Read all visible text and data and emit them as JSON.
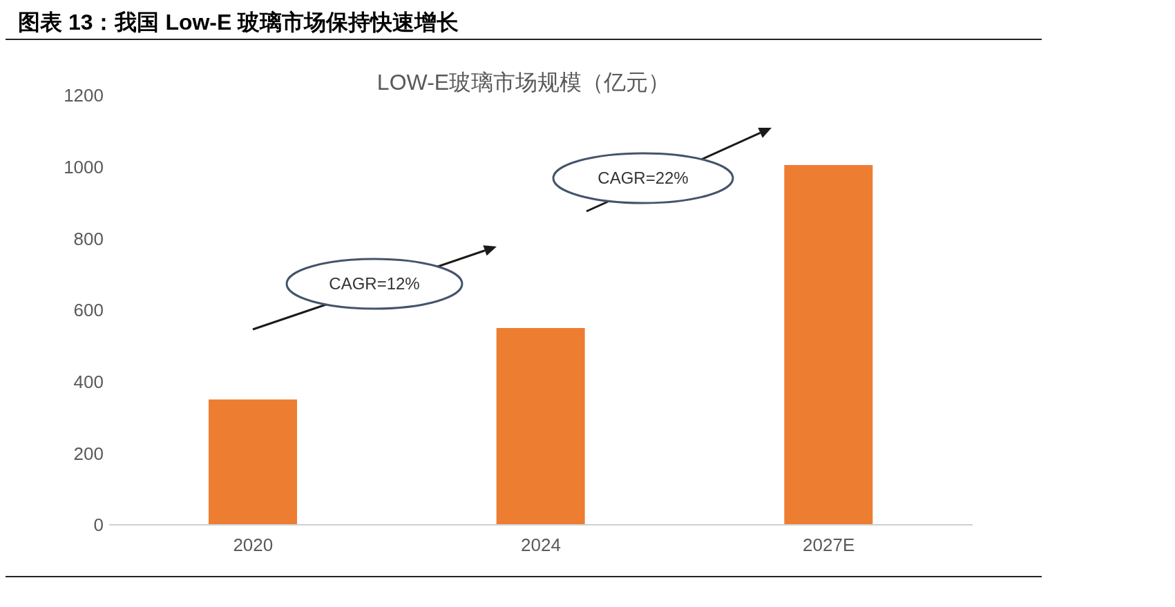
{
  "chart_data": {
    "type": "bar",
    "title": "图表 13：我国 Low-E 玻璃市场保持快速增长",
    "subtitle": "LOW-E玻璃市场规模（亿元）",
    "categories": [
      "2020",
      "2024",
      "2027E"
    ],
    "values": [
      350,
      550,
      1005
    ],
    "color": "#ed7d31",
    "ylim": [
      0,
      1200
    ],
    "yticks": [
      0,
      200,
      400,
      600,
      800,
      1000,
      1200
    ],
    "annotations": [
      "CAGR=12%",
      "CAGR=22%"
    ]
  }
}
